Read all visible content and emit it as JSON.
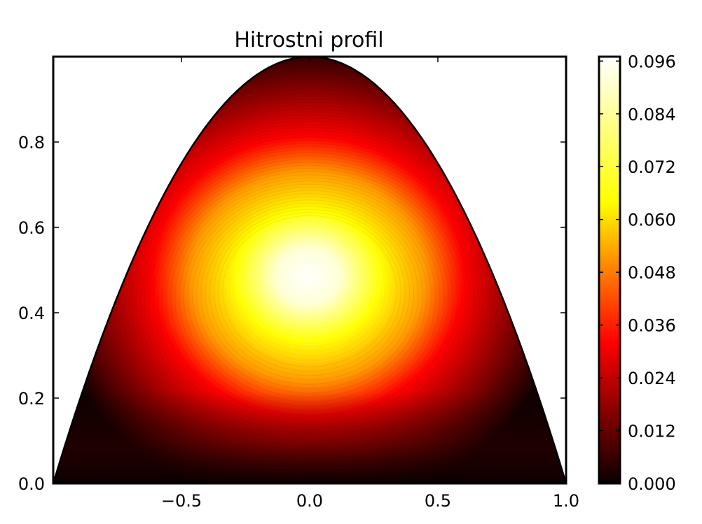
{
  "chart_data": {
    "type": "heatmap",
    "title": "Hitrostni profil",
    "xlabel": "",
    "ylabel": "",
    "xlim": [
      -1.0,
      1.0
    ],
    "ylim": [
      0.0,
      1.0
    ],
    "x_ticks": [
      -0.5,
      0.0,
      0.5,
      1.0
    ],
    "x_tick_labels": [
      "−0.5",
      "0.0",
      "0.5",
      "1.0"
    ],
    "y_ticks": [
      0.0,
      0.2,
      0.4,
      0.6,
      0.8
    ],
    "y_tick_labels": [
      "0.0",
      "0.2",
      "0.4",
      "0.6",
      "0.8"
    ],
    "grid": false,
    "domain": "parabolic cross-section: 0 ≤ y ≤ 1 − x²",
    "max_value": 0.097,
    "max_location": [
      0.0,
      0.48
    ],
    "colormap": "hot",
    "colorbar": {
      "range": [
        0.0,
        0.097
      ],
      "ticks": [
        0.0,
        0.012,
        0.024,
        0.036,
        0.048,
        0.06,
        0.072,
        0.084,
        0.096
      ],
      "tick_labels": [
        "0.000",
        "0.012",
        "0.024",
        "0.036",
        "0.048",
        "0.060",
        "0.072",
        "0.084",
        "0.096"
      ]
    }
  },
  "colors": {
    "axes": "#000000",
    "background": "#ffffff",
    "hot_stops": [
      "#0a0000",
      "#800000",
      "#ff0000",
      "#ff8000",
      "#ffff00",
      "#ffffff"
    ]
  }
}
